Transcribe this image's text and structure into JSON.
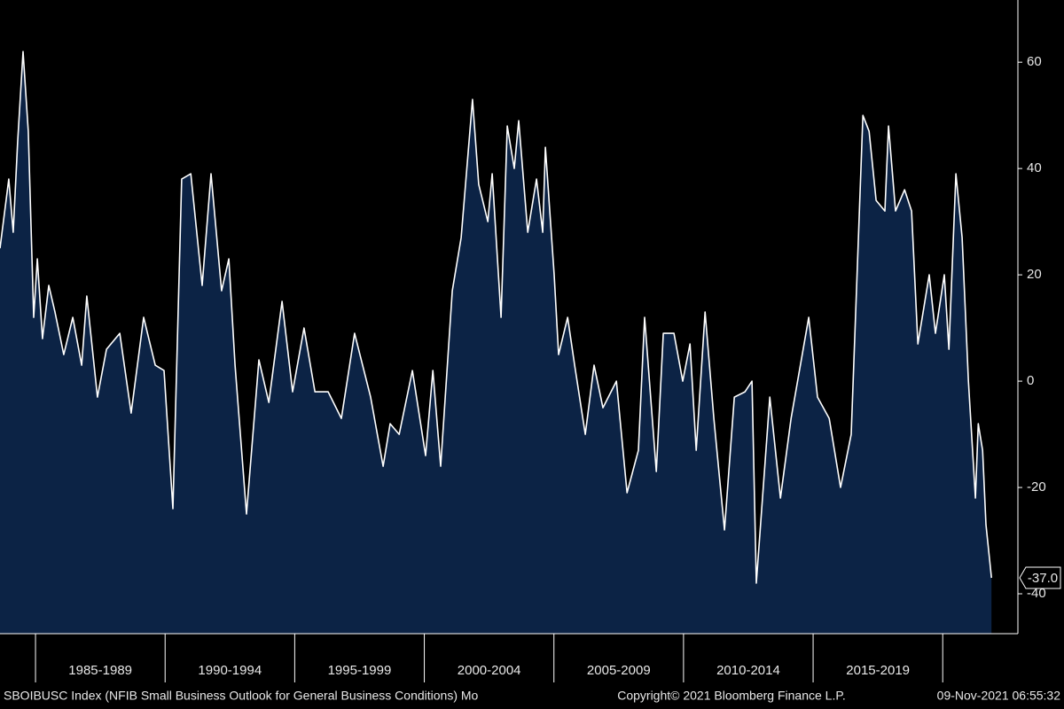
{
  "chart_data": {
    "type": "area",
    "color": "#0c2345",
    "line_color": "#ffffff",
    "x": [
      1983.63,
      1983.97,
      1984.14,
      1984.31,
      1984.52,
      1984.72,
      1984.93,
      1985.07,
      1985.27,
      1985.51,
      1985.75,
      1986.09,
      1986.44,
      1986.78,
      1986.98,
      1987.39,
      1987.74,
      1988.25,
      1988.69,
      1989.17,
      1989.62,
      1989.96,
      1990.3,
      1990.64,
      1990.99,
      1991.43,
      1991.77,
      1992.18,
      1992.46,
      1992.7,
      1993.14,
      1993.62,
      1994.0,
      1994.51,
      1994.92,
      1995.36,
      1995.78,
      1996.29,
      1996.8,
      1997.31,
      1997.93,
      1998.41,
      1998.68,
      1999.03,
      1999.54,
      2000.05,
      2000.33,
      2000.63,
      2001.08,
      2001.42,
      2001.86,
      2002.1,
      2002.45,
      2002.62,
      2002.96,
      2003.2,
      2003.47,
      2003.64,
      2003.99,
      2004.33,
      2004.57,
      2004.67,
      2005.01,
      2005.18,
      2005.53,
      2005.8,
      2006.21,
      2006.55,
      2006.89,
      2007.41,
      2007.82,
      2008.26,
      2008.5,
      2008.95,
      2009.22,
      2009.63,
      2009.97,
      2010.25,
      2010.49,
      2010.83,
      2011.17,
      2011.58,
      2011.96,
      2012.37,
      2012.64,
      2012.81,
      2013.33,
      2013.74,
      2014.15,
      2014.83,
      2015.17,
      2015.62,
      2016.06,
      2016.47,
      2016.92,
      2017.16,
      2017.43,
      2017.77,
      2017.91,
      2018.18,
      2018.53,
      2018.8,
      2019.04,
      2019.48,
      2019.72,
      2020.06,
      2020.24,
      2020.51,
      2020.75,
      2020.99,
      2021.26,
      2021.37,
      2021.54,
      2021.67,
      2021.88
    ],
    "values": [
      25,
      38,
      28,
      45,
      62,
      47,
      12,
      23,
      8,
      18,
      13,
      5,
      12,
      3,
      16,
      -3,
      6,
      9,
      -6,
      12,
      3,
      2,
      -24,
      38,
      39,
      18,
      39,
      17,
      23,
      3,
      -25,
      4,
      -4,
      15,
      -2,
      10,
      -2,
      -2,
      -7,
      9,
      -3,
      -16,
      -8,
      -10,
      2,
      -14,
      2,
      -16,
      17,
      27,
      53,
      37,
      30,
      39,
      12,
      48,
      40,
      49,
      28,
      38,
      28,
      44,
      20,
      5,
      12,
      3,
      -10,
      3,
      -5,
      0,
      -21,
      -13,
      12,
      -17,
      9,
      9,
      0,
      7,
      -13,
      13,
      -7,
      -28,
      -3,
      -2,
      0,
      -38,
      -3,
      -22,
      -7,
      12,
      -3,
      -7,
      -20,
      -10,
      50,
      47,
      34,
      32,
      48,
      32,
      36,
      32,
      7,
      20,
      9,
      20,
      6,
      39,
      27,
      0,
      -22,
      -8,
      -13,
      -27,
      -37
    ],
    "last_label": "-37.0",
    "xlim": [
      1983.63,
      2022.9
    ],
    "xticks": [
      1985,
      1990,
      1995,
      2000,
      2005,
      2010,
      2015,
      2020
    ],
    "period_labels": [
      "1985-1989",
      "1990-1994",
      "1995-1999",
      "2000-2004",
      "2005-2009",
      "2010-2014",
      "2015-2019"
    ],
    "ylim": [
      -47.5,
      71.7
    ],
    "yticks": [
      -40,
      -20,
      0,
      20,
      40,
      60
    ],
    "footer": {
      "left": "SBOIBUSC Index (NFIB Small Business Outlook for General Business Conditions)  Mo",
      "center": "Copyright© 2021 Bloomberg Finance L.P.",
      "right": "09-Nov-2021 06:55:32"
    }
  }
}
